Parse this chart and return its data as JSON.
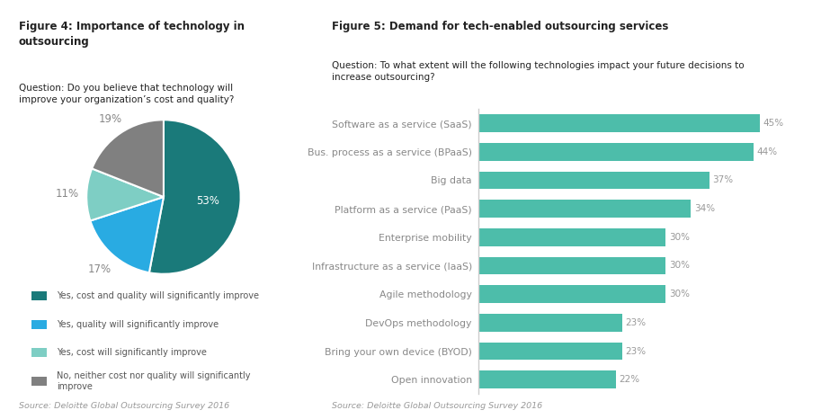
{
  "fig4_title": "Figure 4: Importance of technology in\noutsourcing",
  "fig4_question": "Question: Do you believe that technology will\nimprove your organization’s cost and quality?",
  "fig4_source": "Source: Deloitte Global Outsourcing Survey 2016",
  "pie_values": [
    53,
    17,
    11,
    19
  ],
  "pie_labels": [
    "53%",
    "17%",
    "11%",
    "19%"
  ],
  "pie_colors": [
    "#1a7a7a",
    "#29abe2",
    "#7ecec4",
    "#808080"
  ],
  "pie_legend": [
    "Yes, cost and quality will significantly improve",
    "Yes, quality will significantly improve",
    "Yes, cost will significantly improve",
    "No, neither cost nor quality will significantly\nimprove"
  ],
  "fig5_title": "Figure 5: Demand for tech-enabled outsourcing services",
  "fig5_question": "Question: To what extent will the following technologies impact your future decisions to\nincrease outsourcing?",
  "fig5_source": "Source: Deloitte Global Outsourcing Survey 2016",
  "bar_categories": [
    "Software as a service (SaaS)",
    "Bus. process as a service (BPaaS)",
    "Big data",
    "Platform as a service (PaaS)",
    "Enterprise mobility",
    "Infrastructure as a service (IaaS)",
    "Agile methodology",
    "DevOps methodology",
    "Bring your own device (BYOD)",
    "Open innovation"
  ],
  "bar_values": [
    45,
    44,
    37,
    34,
    30,
    30,
    30,
    23,
    23,
    22
  ],
  "bar_color": "#4dbdaa",
  "bar_pct_color": "#999999",
  "title_color": "#222222",
  "question_color": "#222222",
  "source_color": "#999999",
  "label_color": "#888888",
  "background_color": "#ffffff"
}
